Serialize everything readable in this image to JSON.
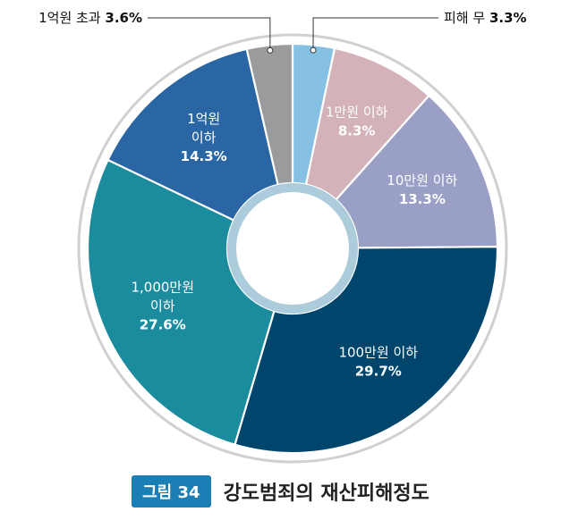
{
  "caption": {
    "figure_label": "그림 34",
    "title": "강도범죄의 재산피해정도"
  },
  "chart_data": {
    "type": "pie",
    "variant": "donut",
    "title": "강도범죄의 재산피해정도",
    "unit": "%",
    "slices": [
      {
        "label": "피해 무",
        "value": 3.3,
        "color": "#86c1e3",
        "label_position": "outside"
      },
      {
        "label": "1만원 이하",
        "value": 8.3,
        "color": "#d4b2ba",
        "label_position": "inside"
      },
      {
        "label": "10만원 이하",
        "value": 13.3,
        "color": "#9a9fc6",
        "label_position": "inside"
      },
      {
        "label": "100만원 이하",
        "value": 29.7,
        "color": "#00456b",
        "label_position": "inside"
      },
      {
        "label": "1,000만원 이하",
        "value": 27.6,
        "color": "#1b8c9e",
        "label_position": "inside"
      },
      {
        "label": "1억원 이하",
        "value": 14.3,
        "color": "#2966a3",
        "label_position": "inside"
      },
      {
        "label": "1억원 초과",
        "value": 3.6,
        "color": "#9a9b9d",
        "label_position": "outside"
      }
    ],
    "slice_label_lines": [
      [
        "피해 무"
      ],
      [
        "1만원 이하"
      ],
      [
        "10만원 이하"
      ],
      [
        "100만원 이하"
      ],
      [
        "1,000만원",
        "이하"
      ],
      [
        "1억원",
        "이하"
      ],
      [
        "1억원 초과"
      ]
    ],
    "pct_labels": [
      "3.3%",
      "8.3%",
      "13.3%",
      "29.7%",
      "27.6%",
      "14.3%",
      "3.6%"
    ]
  }
}
